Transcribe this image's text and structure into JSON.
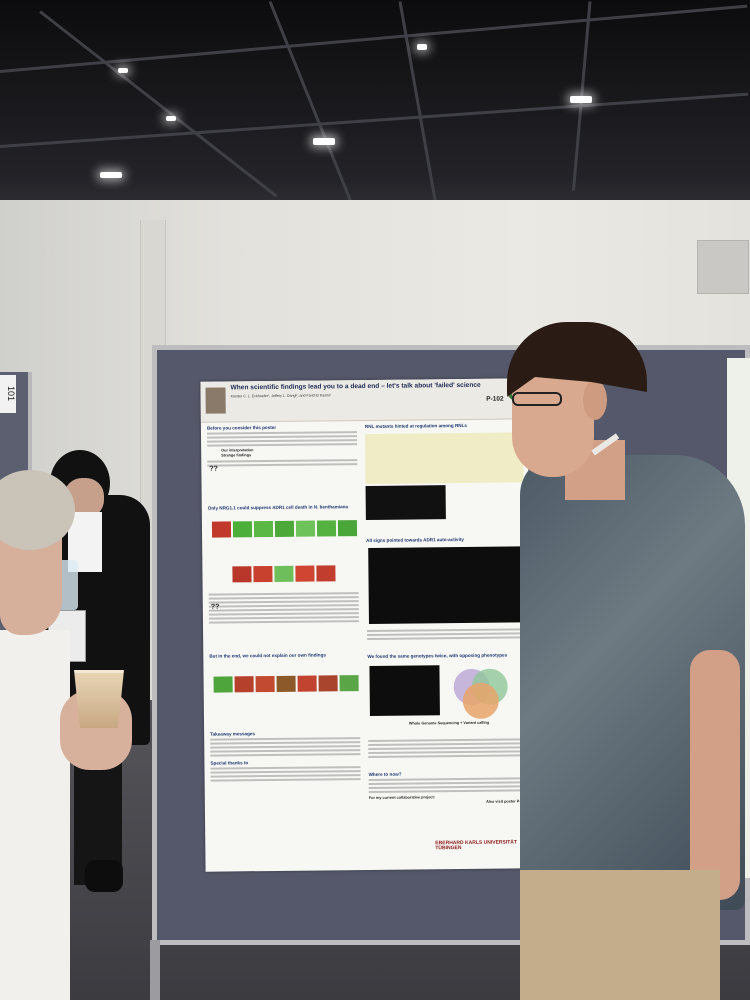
{
  "poster": {
    "title": "When scientific findings lead you to a dead end – let's talk about 'failed' science",
    "authors": "Kander C. L. Eckhoefer¹, Jeffery L. Dangl², and Farid El Kasmi¹",
    "code": "P-102",
    "sections": {
      "intro_head": "Before you consider this poster",
      "our_interpretation": "Our interpretation",
      "strange_findings": "Strange findings",
      "nrg1_head": "Only NRG1.1 could suppress ADR1 cell death in N. benthamiana",
      "rnl_head": "RNL mutants hinted at regulation among RNLs",
      "autoactivity_head": "All signs pointed towards ADR1 auto-activity",
      "end_head": "But in the end, we could not explain our own findings",
      "phenotypes_head": "We found the same genotypes twice, with opposing phenotypes",
      "wgs": "Whole Genome Sequencing + Variant calling",
      "takeaway_head": "Takeaway messages",
      "thanks_head": "Special thanks to",
      "next_head": "Where to now?",
      "collab": "For my current collaborative project:",
      "also_visit": "Also visit poster P-063",
      "university": "EBERHARD KARLS UNIVERSITÄT TÜBINGEN"
    }
  },
  "left_sign": "101"
}
